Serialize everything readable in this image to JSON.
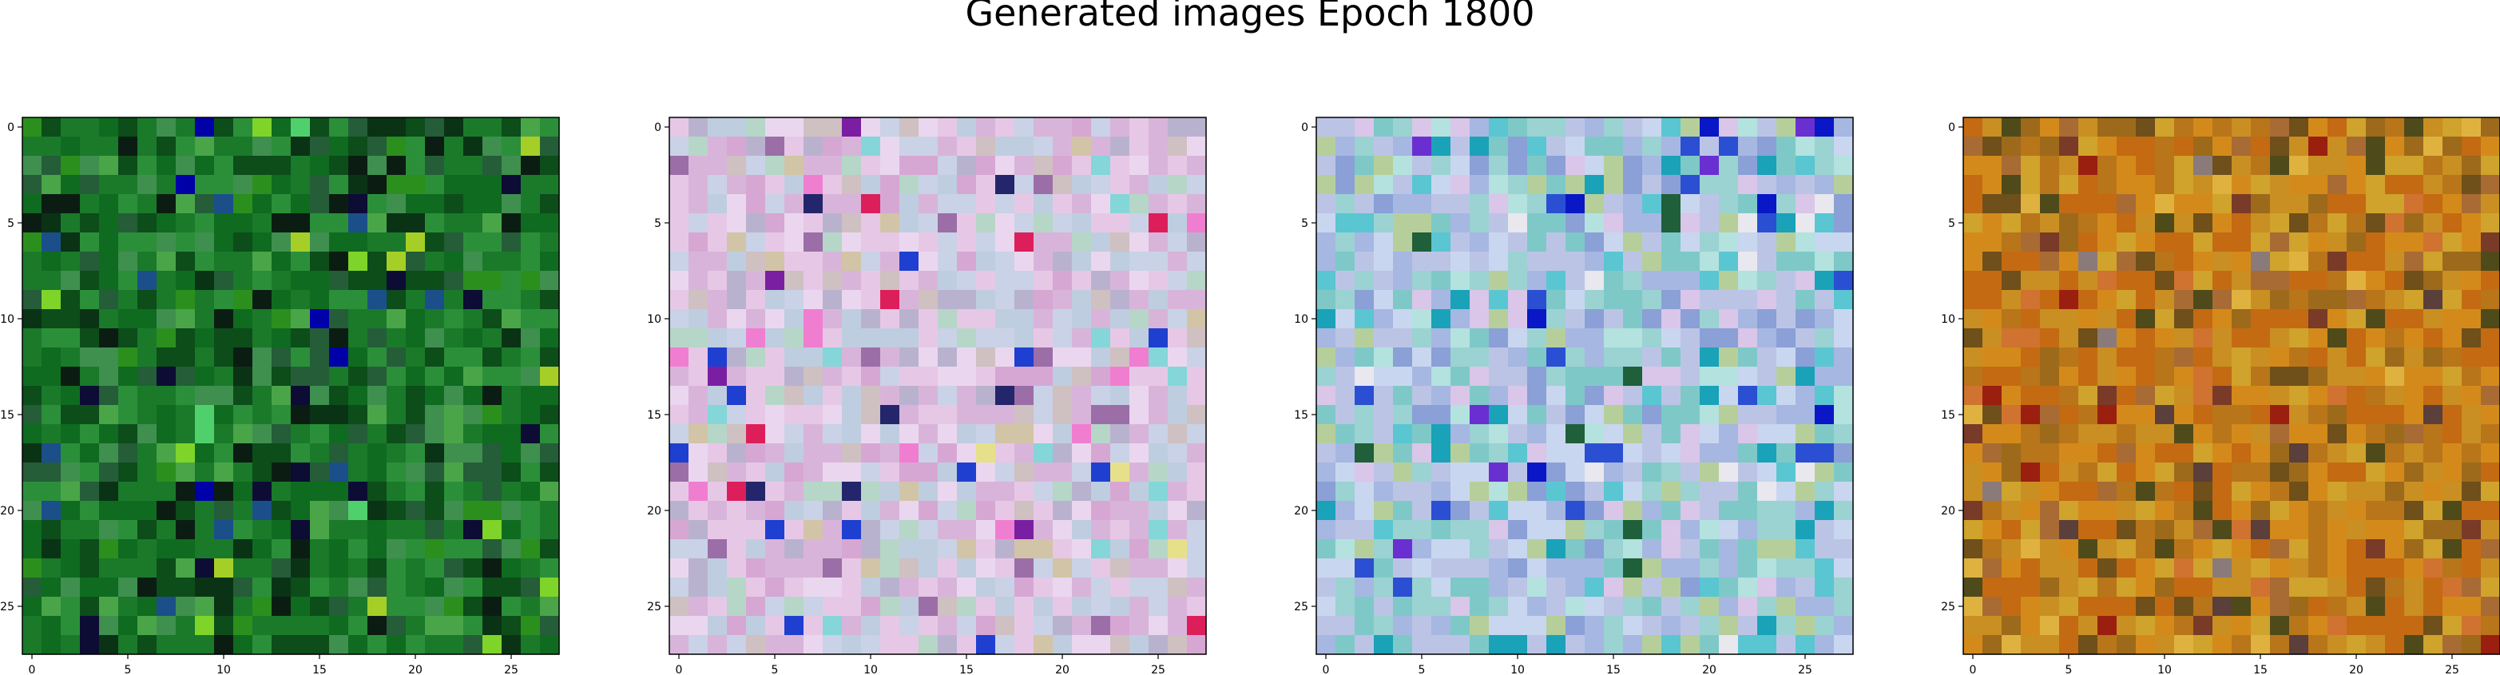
{
  "figure": {
    "title": "Generated images Epoch 1800"
  },
  "chart_data": {
    "type": "heatmap",
    "title": "Generated images Epoch 1800",
    "grid_size": [
      28,
      28
    ],
    "image_count": 4,
    "xlim": [
      -0.5,
      27.5
    ],
    "ylim": [
      27.5,
      -0.5
    ],
    "xticks": [
      0,
      5,
      10,
      15,
      20,
      25
    ],
    "yticks": [
      0,
      5,
      10,
      15,
      20,
      25
    ],
    "xtick_labels": [
      "0",
      "5",
      "10",
      "15",
      "20",
      "25"
    ],
    "ytick_labels": [
      "0",
      "5",
      "10",
      "15",
      "20",
      "25"
    ],
    "grid": false,
    "images": [
      {
        "palette": [
          "#0f6b1f",
          "#1a7a2a",
          "#2b8f3a",
          "#0c4d1a",
          "#245d38",
          "#3f8f4f",
          "#4aa548",
          "#0a3315",
          "#0b1d12",
          "#0c0c35",
          "#1b4f8a",
          "#2b8f1d",
          "#7fd42a",
          "#a5cf26",
          "#0000a8",
          "#50d06c"
        ],
        "weights": [
          18,
          18,
          14,
          14,
          10,
          8,
          6,
          5,
          3,
          2,
          2,
          4,
          1,
          1,
          1,
          1
        ]
      },
      {
        "palette": [
          "#e6c8e6",
          "#d9b4da",
          "#c9d2e6",
          "#bfcde0",
          "#ead7ef",
          "#d7a7d4",
          "#cfc0c2",
          "#b6d6c8",
          "#b9b2cf",
          "#d2c4a6",
          "#9b6ea8",
          "#7b1fa2",
          "#dc1f5b",
          "#f07ed0",
          "#1f3fd0",
          "#23266a",
          "#84d6d8",
          "#e6e08a"
        ],
        "weights": [
          18,
          16,
          14,
          12,
          10,
          8,
          6,
          6,
          6,
          4,
          3,
          1,
          1,
          2,
          1,
          1,
          2,
          1
        ]
      },
      {
        "palette": [
          "#bcc4e6",
          "#a6b7e2",
          "#c9d6ef",
          "#9bd2d2",
          "#7ec9c7",
          "#b6cf9a",
          "#d9c6e8",
          "#8aa0d6",
          "#5ac6d1",
          "#1aa2b8",
          "#2b4fd2",
          "#0a17c7",
          "#6a2fd0",
          "#1f5f3a",
          "#b3e2df",
          "#e8e8ee"
        ],
        "weights": [
          16,
          14,
          12,
          12,
          10,
          6,
          6,
          6,
          5,
          3,
          2,
          1,
          1,
          1,
          4,
          2
        ]
      },
      {
        "palette": [
          "#c46a12",
          "#d48a1a",
          "#c98f22",
          "#b8751a",
          "#cfa32c",
          "#9c6a1a",
          "#6f4f1a",
          "#d07230",
          "#a86b34",
          "#4f4a1a",
          "#7a3a28",
          "#9a1f0f",
          "#5a3f3a",
          "#8b7a7a",
          "#dfb240"
        ],
        "weights": [
          18,
          16,
          14,
          12,
          10,
          8,
          5,
          4,
          4,
          3,
          2,
          1,
          1,
          1,
          2
        ]
      }
    ]
  }
}
